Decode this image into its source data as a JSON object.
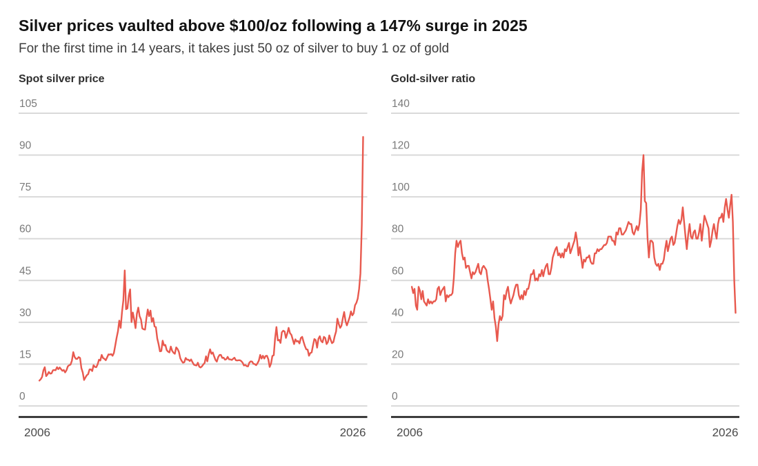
{
  "page": {
    "title": "Silver prices vaulted above $100/oz following a 147% surge in 2025",
    "subtitle": "For the first time in 14 years, it takes just 50 oz of silver to buy 1 oz of gold"
  },
  "colors": {
    "line": "#e8594e",
    "grid": "#d9d9d9",
    "axis": "#141414",
    "tick_label": "#7a7a7a",
    "year_label": "#4a4a4a"
  },
  "chart_data": [
    {
      "type": "line",
      "title": "Spot silver price",
      "series_name": "Spot silver price (USD/oz)",
      "start_year": 2006,
      "end_year": 2026,
      "points_per_year": 12,
      "x_tick_labels": [
        "2006",
        "2026"
      ],
      "yticks": [
        0,
        15,
        30,
        45,
        60,
        75,
        90,
        105
      ],
      "ylim": [
        0,
        105
      ],
      "grid": true,
      "legend": "none",
      "values": [
        9.1,
        9.6,
        10.4,
        12.8,
        13.9,
        10.7,
        11.3,
        12.2,
        11.6,
        11.7,
        12.8,
        12.9,
        12.8,
        13.9,
        13.2,
        13.8,
        13.2,
        12.6,
        12.9,
        12.0,
        12.8,
        14.2,
        14.6,
        14.8,
        16.2,
        19.3,
        17.6,
        16.9,
        16.9,
        17.5,
        17.2,
        13.6,
        12.0,
        9.3,
        10.2,
        11.0,
        11.4,
        13.1,
        13.1,
        12.5,
        14.6,
        14.0,
        13.9,
        14.9,
        16.6,
        16.3,
        18.3,
        17.2,
        16.9,
        16.4,
        17.4,
        18.5,
        18.4,
        18.6,
        18.0,
        19.0,
        21.7,
        24.4,
        26.8,
        30.6,
        28.0,
        33.8,
        37.9,
        48.6,
        34.7,
        35.0,
        39.6,
        41.8,
        30.1,
        33.5,
        31.0,
        27.9,
        33.1,
        35.3,
        32.2,
        31.0,
        27.8,
        27.5,
        27.4,
        31.4,
        34.6,
        32.2,
        34.2,
        30.2,
        31.5,
        28.5,
        28.3,
        24.2,
        22.2,
        19.6,
        19.7,
        23.4,
        21.7,
        21.9,
        20.0,
        19.5,
        19.2,
        21.3,
        19.8,
        19.1,
        18.7,
        21.0,
        20.4,
        19.4,
        17.1,
        16.2,
        15.5,
        15.7,
        17.2,
        16.6,
        16.6,
        16.1,
        16.7,
        15.7,
        14.8,
        14.6,
        14.5,
        15.5,
        14.1,
        13.8,
        14.2,
        14.9,
        15.4,
        17.8,
        16.0,
        18.6,
        20.3,
        18.7,
        19.2,
        17.8,
        16.5,
        15.9,
        17.5,
        18.3,
        18.3,
        17.2,
        17.3,
        16.6,
        16.8,
        17.6,
        16.7,
        16.7,
        16.5,
        16.9,
        17.3,
        16.4,
        16.3,
        16.4,
        16.4,
        16.1,
        15.5,
        14.5,
        14.7,
        14.3,
        14.2,
        15.5,
        16.0,
        15.9,
        15.1,
        15.0,
        14.6,
        15.3,
        16.3,
        18.3,
        17.0,
        18.0,
        17.0,
        17.9,
        18.0,
        16.7,
        14.0,
        15.2,
        17.9,
        18.2,
        24.4,
        28.3,
        23.5,
        23.7,
        22.6,
        26.4,
        27.0,
        26.7,
        24.4,
        26.0,
        28.0,
        26.1,
        25.5,
        23.9,
        22.2,
        23.9,
        23.1,
        23.3,
        22.4,
        24.4,
        24.8,
        23.0,
        21.5,
        20.3,
        20.2,
        18.0,
        19.0,
        19.2,
        21.8,
        24.0,
        23.6,
        20.9,
        24.1,
        25.0,
        23.3,
        22.8,
        24.8,
        24.4,
        22.2,
        22.9,
        25.3,
        23.8,
        22.5,
        22.9,
        25.0,
        26.7,
        31.3,
        29.4,
        28.0,
        28.8,
        31.5,
        33.7,
        30.4,
        28.9,
        30.3,
        31.8,
        33.9,
        32.5,
        33.2,
        36.1,
        37.0,
        38.5,
        42.0,
        47.5,
        65.0,
        96.5
      ]
    },
    {
      "type": "line",
      "title": "Gold-silver ratio",
      "series_name": "Gold-silver ratio (oz silver per oz gold)",
      "start_year": 2006,
      "end_year": 2026,
      "points_per_year": 12,
      "x_tick_labels": [
        "2006",
        "2026"
      ],
      "yticks": [
        0,
        20,
        40,
        60,
        80,
        100,
        120,
        140
      ],
      "ylim": [
        0,
        140
      ],
      "grid": true,
      "legend": "none",
      "values": [
        57,
        54,
        56,
        48,
        46,
        57,
        55,
        51,
        55,
        50,
        49,
        48,
        51,
        49,
        50,
        49,
        50,
        50,
        51,
        56,
        57,
        53,
        55,
        56,
        57,
        50,
        53,
        52,
        53,
        53,
        54,
        61,
        73,
        79,
        76,
        78,
        79,
        73,
        70,
        71,
        66,
        67,
        67,
        64,
        61,
        64,
        63,
        64,
        66,
        68,
        64,
        63,
        66,
        67,
        66,
        65,
        60,
        56,
        51,
        46,
        50,
        42,
        38,
        31,
        39,
        43,
        41,
        43,
        53,
        51,
        55,
        57,
        52,
        49,
        51,
        53,
        56,
        58,
        58,
        53,
        51,
        53,
        51,
        55,
        53,
        56,
        56,
        59,
        63,
        63,
        65,
        60,
        61,
        60,
        63,
        62,
        65,
        62,
        65,
        67,
        68,
        63,
        63,
        66,
        71,
        73,
        75,
        76,
        72,
        73,
        71,
        73,
        71,
        75,
        74,
        76,
        78,
        73,
        75,
        77,
        79,
        83,
        79,
        72,
        76,
        71,
        66,
        70,
        69,
        71,
        71,
        72,
        69,
        68,
        68,
        73,
        73,
        75,
        74,
        75,
        75,
        76,
        77,
        77,
        78,
        81,
        81,
        81,
        79,
        79,
        77,
        83,
        82,
        85,
        85,
        82,
        82,
        83,
        84,
        86,
        88,
        87,
        87,
        83,
        82,
        84,
        86,
        84,
        87,
        94,
        112,
        120,
        98,
        97,
        80,
        71,
        79,
        79,
        78,
        71,
        68,
        67,
        68,
        65,
        68,
        68,
        70,
        75,
        79,
        74,
        77,
        80,
        81,
        77,
        78,
        82,
        86,
        89,
        87,
        89,
        95,
        88,
        81,
        75,
        82,
        87,
        81,
        80,
        83,
        84,
        80,
        80,
        83,
        87,
        79,
        85,
        91,
        89,
        87,
        85,
        76,
        79,
        84,
        87,
        83,
        80,
        87,
        90,
        90,
        92,
        88,
        95,
        99,
        94,
        90,
        96,
        101,
        88,
        60,
        44.5
      ]
    }
  ]
}
